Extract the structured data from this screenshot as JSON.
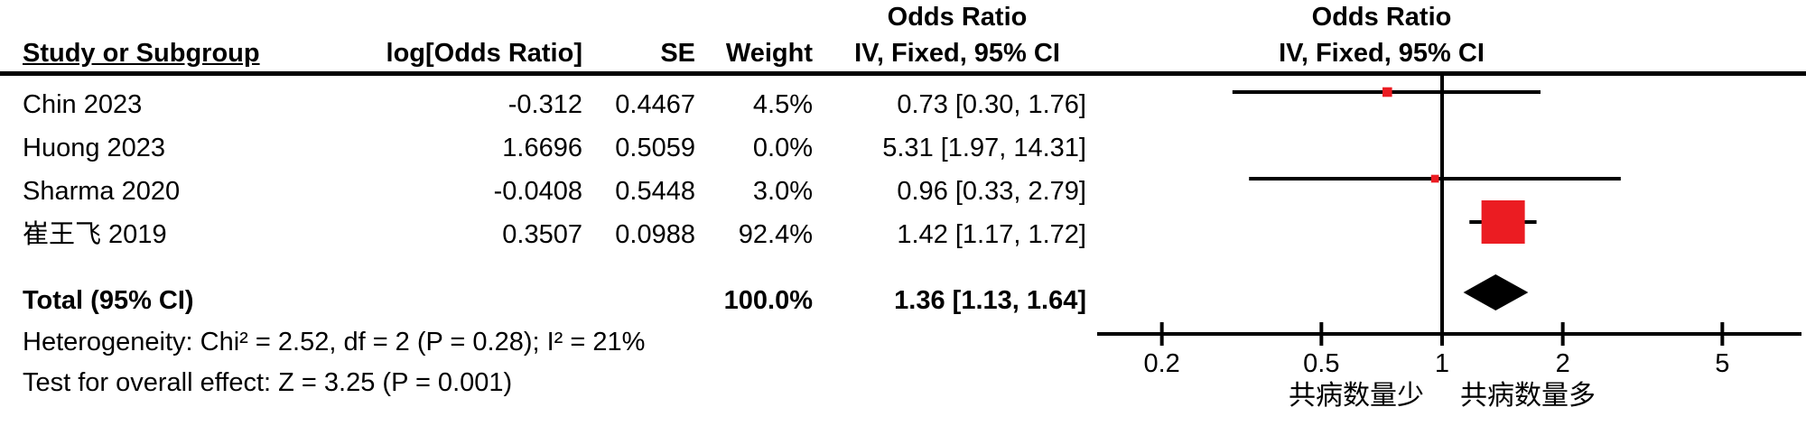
{
  "table": {
    "headers": {
      "study": "Study or Subgroup",
      "log_or": "log[Odds Ratio]",
      "se": "SE",
      "weight": "Weight",
      "stats_or_line1": "Odds Ratio",
      "stats_or_line2": "IV, Fixed, 95% CI",
      "graph_or_line1": "Odds Ratio",
      "graph_or_line2": "IV, Fixed, 95% CI"
    }
  },
  "footer": {
    "heterogeneity": "Heterogeneity: Chi² = 2.52, df = 2 (P = 0.28); I² = 21%",
    "overall_effect": "Test for overall effect: Z = 3.25 (P = 0.001)"
  },
  "chart_data": {
    "type": "forest",
    "effect_measure": "Odds Ratio, IV, Fixed, 95% CI",
    "x_scale": "log",
    "axis_ticks": [
      0.2,
      0.5,
      1,
      2,
      5
    ],
    "axis_range": [
      0.14,
      7.9
    ],
    "x_label_left": "共病数量少",
    "x_label_right": "共病数量多",
    "colors": {
      "marker": "#eb1c22",
      "diamond": "#000000",
      "line": "#000000"
    },
    "studies": [
      {
        "name": "Chin 2023",
        "log_or": "-0.312",
        "se": "0.4467",
        "weight": "4.5%",
        "weight_pct": 4.5,
        "or": 0.73,
        "ci_low": 0.3,
        "ci_high": 1.76,
        "ci_text": "0.73 [0.30, 1.76]",
        "plotted": true
      },
      {
        "name": "Huong 2023",
        "log_or": "1.6696",
        "se": "0.5059",
        "weight": "0.0%",
        "weight_pct": 0.0,
        "or": 5.31,
        "ci_low": 1.97,
        "ci_high": 14.31,
        "ci_text": "5.31 [1.97, 14.31]",
        "plotted": false
      },
      {
        "name": "Sharma 2020",
        "log_or": "-0.0408",
        "se": "0.5448",
        "weight": "3.0%",
        "weight_pct": 3.0,
        "or": 0.96,
        "ci_low": 0.33,
        "ci_high": 2.79,
        "ci_text": "0.96 [0.33, 2.79]",
        "plotted": true
      },
      {
        "name": "崔王飞 2019",
        "log_or": "0.3507",
        "se": "0.0988",
        "weight": "92.4%",
        "weight_pct": 92.4,
        "or": 1.42,
        "ci_low": 1.17,
        "ci_high": 1.72,
        "ci_text": "1.42 [1.17, 1.72]",
        "plotted": true
      }
    ],
    "total": {
      "label": "Total (95% CI)",
      "weight": "100.0%",
      "or": 1.36,
      "ci_low": 1.13,
      "ci_high": 1.64,
      "ci_text": "1.36 [1.13, 1.64]"
    }
  }
}
